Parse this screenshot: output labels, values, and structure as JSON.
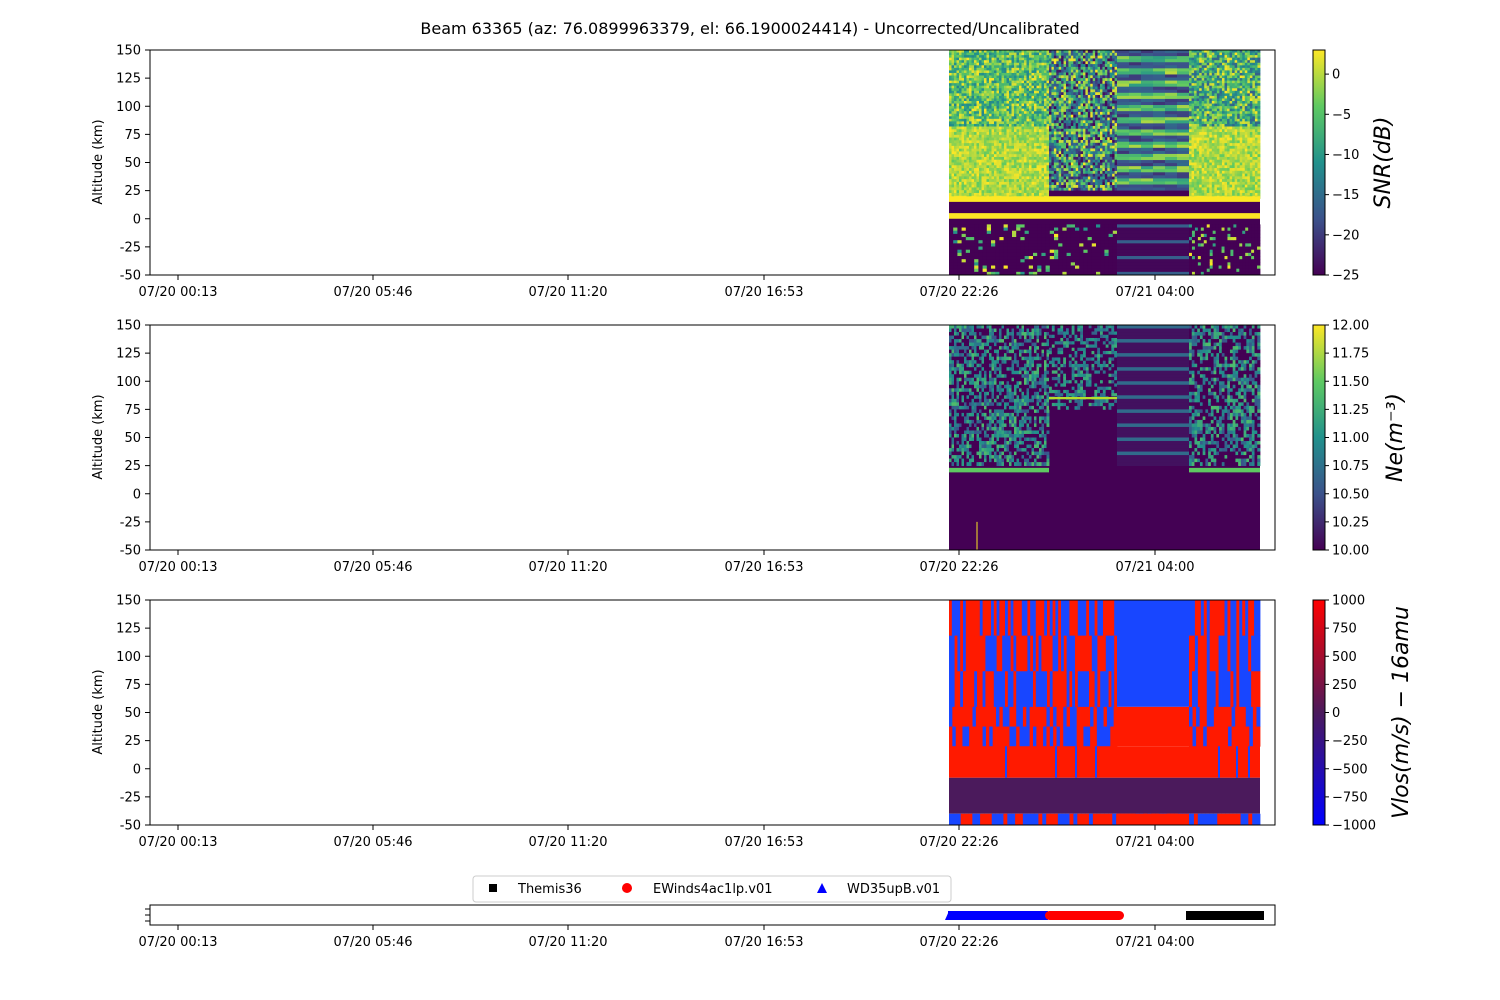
{
  "figure": {
    "title": "Beam 63365 (az: 76.0899963379, el: 66.1900024414) - Uncorrected/Uncalibrated"
  },
  "chart_data": [
    {
      "type": "heatmap",
      "ylabel": "Altitude (km)",
      "ylim": [
        -50,
        150
      ],
      "yticks": [
        150,
        125,
        100,
        75,
        50,
        25,
        0,
        -25,
        -50
      ],
      "xticklabels": [
        "07/20 00:13",
        "07/20 05:46",
        "07/20 11:20",
        "07/20 16:53",
        "07/20 22:26",
        "07/21 04:00"
      ],
      "colorbar_label": "SNR(dB)",
      "colorbar_scale": "viridis",
      "colorbar_range": [
        -25,
        3
      ],
      "colorbar_ticks": [
        "0",
        "−5",
        "−10",
        "−15",
        "−20",
        "−25"
      ],
      "colorbar_tick_values": [
        0,
        -5,
        -10,
        -15,
        -20,
        -25
      ]
    },
    {
      "type": "heatmap",
      "ylabel": "Altitude (km)",
      "ylim": [
        -50,
        150
      ],
      "yticks": [
        150,
        125,
        100,
        75,
        50,
        25,
        0,
        -25,
        -50
      ],
      "xticklabels": [
        "07/20 00:13",
        "07/20 05:46",
        "07/20 11:20",
        "07/20 16:53",
        "07/20 22:26",
        "07/21 04:00"
      ],
      "colorbar_label": "Ne(m⁻³)",
      "colorbar_scale": "viridis",
      "colorbar_range": [
        10,
        12
      ],
      "colorbar_ticks": [
        "12.00",
        "11.75",
        "11.50",
        "11.25",
        "11.00",
        "10.75",
        "10.50",
        "10.25",
        "10.00"
      ],
      "colorbar_tick_values": [
        12,
        11.75,
        11.5,
        11.25,
        11,
        10.75,
        10.5,
        10.25,
        10
      ]
    },
    {
      "type": "heatmap",
      "ylabel": "Altitude (km)",
      "ylim": [
        -50,
        150
      ],
      "yticks": [
        150,
        125,
        100,
        75,
        50,
        25,
        0,
        -25,
        -50
      ],
      "xticklabels": [
        "07/20 00:13",
        "07/20 05:46",
        "07/20 11:20",
        "07/20 16:53",
        "07/20 22:26",
        "07/21 04:00"
      ],
      "colorbar_label": "Vlos(m/s) − 16amu",
      "colorbar_scale": "blue-red",
      "colorbar_range": [
        -1000,
        1000
      ],
      "colorbar_ticks": [
        "1000",
        "750",
        "500",
        "250",
        "0",
        "−250",
        "−500",
        "−750",
        "−1000"
      ],
      "colorbar_tick_values": [
        1000,
        750,
        500,
        250,
        0,
        -250,
        -500,
        -750,
        -1000
      ]
    },
    {
      "type": "scatter",
      "xticklabels": [
        "07/20 00:13",
        "07/20 05:46",
        "07/20 11:20",
        "07/20 16:53",
        "07/20 22:26",
        "07/21 04:00"
      ],
      "legend_position": "top-center",
      "series": [
        {
          "name": "Themis36",
          "marker": "square",
          "color": "#000000"
        },
        {
          "name": "EWinds4ac1lp.v01",
          "marker": "circle",
          "color": "#ff0000"
        },
        {
          "name": "WD35upB.v01",
          "marker": "triangle",
          "color": "#0000ff"
        }
      ]
    }
  ]
}
